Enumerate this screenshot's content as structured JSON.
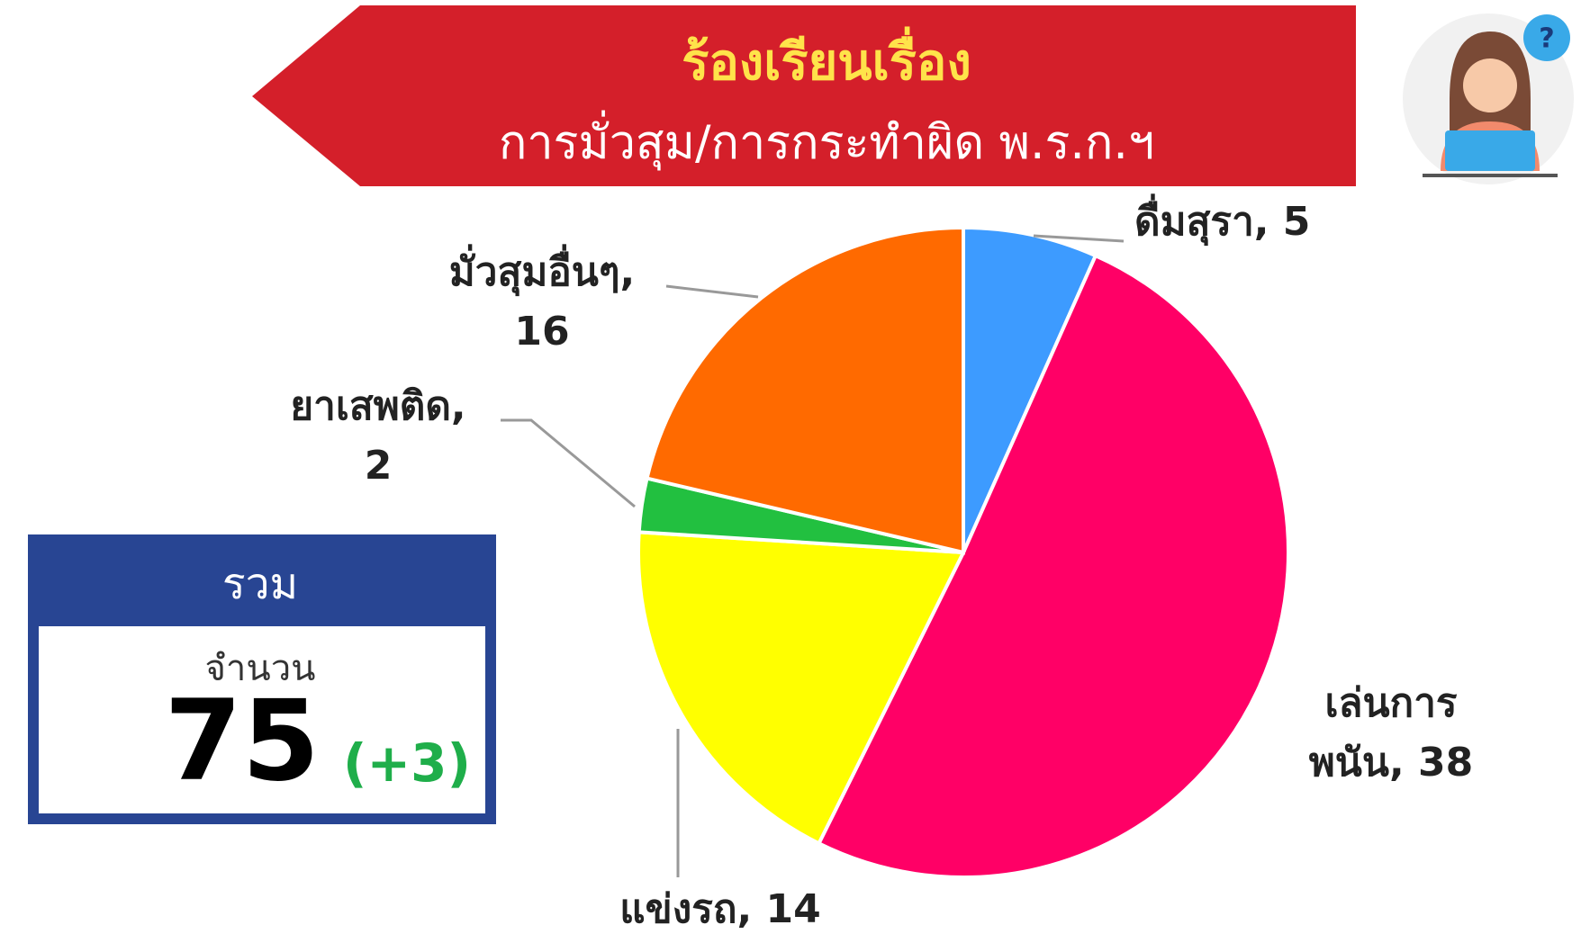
{
  "header": {
    "line1": "ร้องเรียนเรื่อง",
    "line2": "การมั่วสุม/การกระทำผิด พ.ร.ก.ฯ"
  },
  "summary": {
    "title": "รวม",
    "label": "จำนวน",
    "total": "75",
    "change": "(+3)"
  },
  "chart_data": {
    "type": "pie",
    "values": [
      5,
      38,
      14,
      2,
      16
    ],
    "value_labels": [
      "ดื่มสุรา, 5",
      "เล่นการ\nพนัน, 38",
      "แข่งรถ, 14",
      "ยาเสพติด,\n2",
      "มั่วสุมอื่นๆ,\n16"
    ],
    "colors": [
      "#3d9bff",
      "#ff0066",
      "#ffff00",
      "#22c040",
      "#ff6a00"
    ]
  }
}
